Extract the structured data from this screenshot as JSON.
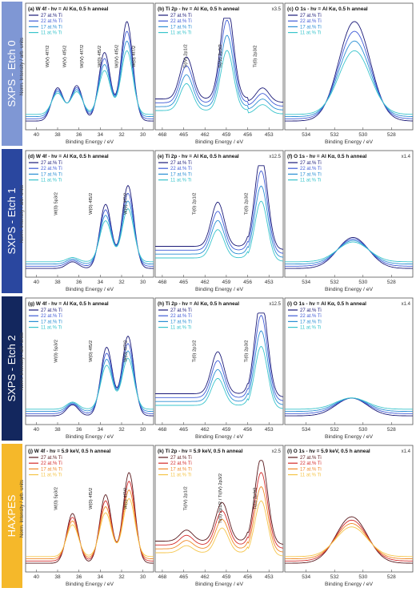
{
  "figure": {
    "rows": [
      {
        "label": "SXPS - Etch 0",
        "color": "#7f97d4",
        "textColor": "#ffffff"
      },
      {
        "label": "SXPS - Etch 1",
        "color": "#2a479f",
        "textColor": "#ffffff"
      },
      {
        "label": "SXPS - Etch 2",
        "color": "#13275e",
        "textColor": "#ffffff"
      },
      {
        "label": "HAXPES",
        "color": "#f5b82a",
        "textColor": "#ffffff"
      }
    ],
    "ylabel": "Norm. Intensity / arb. units",
    "xlabel": "Binding Energy / eV",
    "column_ticks": [
      [
        "40",
        "38",
        "36",
        "34",
        "32",
        "30"
      ],
      [
        "468",
        "465",
        "462",
        "459",
        "456",
        "453"
      ],
      [
        "534",
        "532",
        "530",
        "528"
      ]
    ]
  },
  "chart_data": [
    {
      "type": "line",
      "title": "(a) W 4f - hν = Al Kα, 0.5 h anneal",
      "multiplier": "",
      "series": [
        {
          "name": "27 at.% Ti",
          "color": "#1b1a78"
        },
        {
          "name": "22 at.% Ti",
          "color": "#3f5bd6"
        },
        {
          "name": "17 at.% Ti",
          "color": "#2b8fd4"
        },
        {
          "name": "11 at.% Ti",
          "color": "#39c4cc"
        }
      ],
      "annotations": [
        "W(V) 4f7/2",
        "W(V) 4f5/2",
        "W(IV) 4f7/2",
        "W(0) 4f5/2",
        "W(IV) 4f5/2",
        "W(0) 4f7/2"
      ],
      "xlim": [
        41,
        29
      ],
      "peaks": [
        [
          38.0,
          0.3
        ],
        [
          36.2,
          0.32
        ],
        [
          33.6,
          0.62
        ],
        [
          31.5,
          0.9
        ]
      ]
    },
    {
      "type": "line",
      "title": "(b) Ti 2p - hν = Al Kα, 0.5 h anneal",
      "multiplier": "x3.5",
      "series": [
        {
          "name": "27 at.% Ti",
          "color": "#1b1a78"
        },
        {
          "name": "22 at.% Ti",
          "color": "#3f5bd6"
        },
        {
          "name": "17 at.% Ti",
          "color": "#2b8fd4"
        },
        {
          "name": "11 at.% Ti",
          "color": "#39c4cc"
        }
      ],
      "annotations": [
        "Ti(IV) 2p1/2",
        "Ti(IV) 2p3/2",
        "Ti(0) 2p3/2"
      ],
      "xlim": [
        469,
        451
      ],
      "peaks": [
        [
          464.6,
          0.38
        ],
        [
          458.9,
          0.85
        ],
        [
          453.9,
          0.13
        ]
      ]
    },
    {
      "type": "line",
      "title": "(c) O 1s - hν = Al Kα, 0.5 h anneal",
      "multiplier": "",
      "series": [
        {
          "name": "27 at.% Ti",
          "color": "#1b1a78"
        },
        {
          "name": "22 at.% Ti",
          "color": "#3f5bd6"
        },
        {
          "name": "17 at.% Ti",
          "color": "#2b8fd4"
        },
        {
          "name": "11 at.% Ti",
          "color": "#39c4cc"
        }
      ],
      "annotations": [],
      "xlim": [
        535.5,
        526.5
      ],
      "peaks": [
        [
          530.6,
          0.9
        ]
      ]
    },
    {
      "type": "line",
      "title": "(d) W 4f - hν = Al Kα, 0.5 h anneal",
      "multiplier": "",
      "series": [
        {
          "name": "27 at.% Ti",
          "color": "#1b1a78"
        },
        {
          "name": "22 at.% Ti",
          "color": "#3f5bd6"
        },
        {
          "name": "17 at.% Ti",
          "color": "#2b8fd4"
        },
        {
          "name": "11 at.% Ti",
          "color": "#39c4cc"
        }
      ],
      "annotations": [
        "W(0) 5p3/2",
        "W(0) 4f5/2",
        "W(0) 4f7/2"
      ],
      "xlim": [
        41,
        29
      ],
      "peaks": [
        [
          36.6,
          0.06
        ],
        [
          33.5,
          0.58
        ],
        [
          31.4,
          0.75
        ]
      ]
    },
    {
      "type": "line",
      "title": "(e) Ti 2p - hν = Al Kα, 0.5 h anneal",
      "multiplier": "x12.5",
      "series": [
        {
          "name": "27 at.% Ti",
          "color": "#1b1a78"
        },
        {
          "name": "22 at.% Ti",
          "color": "#3f5bd6"
        },
        {
          "name": "17 at.% Ti",
          "color": "#2b8fd4"
        },
        {
          "name": "11 at.% Ti",
          "color": "#39c4cc"
        }
      ],
      "annotations": [
        "Ti(0) 2p1/2",
        "Ti(0) 2p3/2"
      ],
      "xlim": [
        469,
        451
      ],
      "peaks": [
        [
          460.2,
          0.4
        ],
        [
          454.1,
          0.85
        ]
      ]
    },
    {
      "type": "line",
      "title": "(f) O 1s - hν = Al Kα, 0.5 h anneal",
      "multiplier": "x1.4",
      "series": [
        {
          "name": "27 at.% Ti",
          "color": "#1b1a78"
        },
        {
          "name": "22 at.% Ti",
          "color": "#3f5bd6"
        },
        {
          "name": "17 at.% Ti",
          "color": "#2b8fd4"
        },
        {
          "name": "11 at.% Ti",
          "color": "#39c4cc"
        }
      ],
      "annotations": [],
      "xlim": [
        535.5,
        526.5
      ],
      "peaks": [
        [
          530.7,
          0.28
        ]
      ]
    },
    {
      "type": "line",
      "title": "(g) W 4f - hν = Al Kα, 0.5 h anneal",
      "multiplier": "",
      "series": [
        {
          "name": "27 at.% Ti",
          "color": "#1b1a78"
        },
        {
          "name": "22 at.% Ti",
          "color": "#3f5bd6"
        },
        {
          "name": "17 at.% Ti",
          "color": "#2b8fd4"
        },
        {
          "name": "11 at.% Ti",
          "color": "#39c4cc"
        }
      ],
      "annotations": [
        "W(0) 5p3/2",
        "W(0) 4f5/2",
        "W(0) 4f7/2"
      ],
      "xlim": [
        41,
        29
      ],
      "peaks": [
        [
          36.6,
          0.1
        ],
        [
          33.4,
          0.62
        ],
        [
          31.4,
          0.72
        ]
      ]
    },
    {
      "type": "line",
      "title": "(h) Ti 2p - hν = Al Kα, 0.5 h anneal",
      "multiplier": "x12.5",
      "series": [
        {
          "name": "27 at.% Ti",
          "color": "#1b1a78"
        },
        {
          "name": "22 at.% Ti",
          "color": "#3f5bd6"
        },
        {
          "name": "17 at.% Ti",
          "color": "#2b8fd4"
        },
        {
          "name": "11 at.% Ti",
          "color": "#39c4cc"
        }
      ],
      "annotations": [
        "Ti(0) 2p1/2",
        "Ti(0) 2p3/2"
      ],
      "xlim": [
        469,
        451
      ],
      "peaks": [
        [
          460.2,
          0.38
        ],
        [
          454.1,
          0.88
        ]
      ]
    },
    {
      "type": "line",
      "title": "(i) O 1s - hν = Al Kα, 0.5 h anneal",
      "multiplier": "x1.4",
      "series": [
        {
          "name": "27 at.% Ti",
          "color": "#1b1a78"
        },
        {
          "name": "22 at.% Ti",
          "color": "#3f5bd6"
        },
        {
          "name": "17 at.% Ti",
          "color": "#2b8fd4"
        },
        {
          "name": "11 at.% Ti",
          "color": "#39c4cc"
        }
      ],
      "annotations": [],
      "xlim": [
        535.5,
        526.5
      ],
      "peaks": [
        [
          530.8,
          0.16
        ]
      ]
    },
    {
      "type": "line",
      "title": "(j) W 4f - hν = 5.9 keV, 0.5 h anneal",
      "multiplier": "",
      "series": [
        {
          "name": "27 at.% Ti",
          "color": "#5a1a1e"
        },
        {
          "name": "22 at.% Ti",
          "color": "#d42a2a"
        },
        {
          "name": "17 at.% Ti",
          "color": "#f08a2a"
        },
        {
          "name": "11 at.% Ti",
          "color": "#f5c54a"
        }
      ],
      "annotations": [
        "W(0) 5p3/2",
        "W(0) 4f5/2",
        "W(0) 4f7/2"
      ],
      "xlim": [
        41,
        29
      ],
      "peaks": [
        [
          36.6,
          0.45
        ],
        [
          33.5,
          0.62
        ],
        [
          31.3,
          0.82
        ]
      ]
    },
    {
      "type": "line",
      "title": "(k) Ti 2p - hν = 5.9 keV, 0.5 h anneal",
      "multiplier": "x2.5",
      "series": [
        {
          "name": "27 at.% Ti",
          "color": "#5a1a1e"
        },
        {
          "name": "22 at.% Ti",
          "color": "#d42a2a"
        },
        {
          "name": "17 at.% Ti",
          "color": "#f08a2a"
        },
        {
          "name": "11 at.% Ti",
          "color": "#f5c54a"
        }
      ],
      "annotations": [
        "Ti(IV) 2p1/2",
        "Ti(0) 2p1/2 / Ti(IV) 2p3/2",
        "Ti(0) 2p3/2"
      ],
      "xlim": [
        469,
        451
      ],
      "peaks": [
        [
          464.6,
          0.1
        ],
        [
          459.6,
          0.35
        ],
        [
          454.1,
          0.78
        ]
      ]
    },
    {
      "type": "line",
      "title": "(l) O 1s - hν = 5.9 keV, 0.5 h anneal",
      "multiplier": "x1.4",
      "series": [
        {
          "name": "27 at.% Ti",
          "color": "#5a1a1e"
        },
        {
          "name": "22 at.% Ti",
          "color": "#d42a2a"
        },
        {
          "name": "17 at.% Ti",
          "color": "#f08a2a"
        },
        {
          "name": "11 at.% Ti",
          "color": "#f5c54a"
        }
      ],
      "annotations": [],
      "xlim": [
        535.5,
        526.5
      ],
      "peaks": [
        [
          530.8,
          0.42
        ]
      ]
    }
  ]
}
